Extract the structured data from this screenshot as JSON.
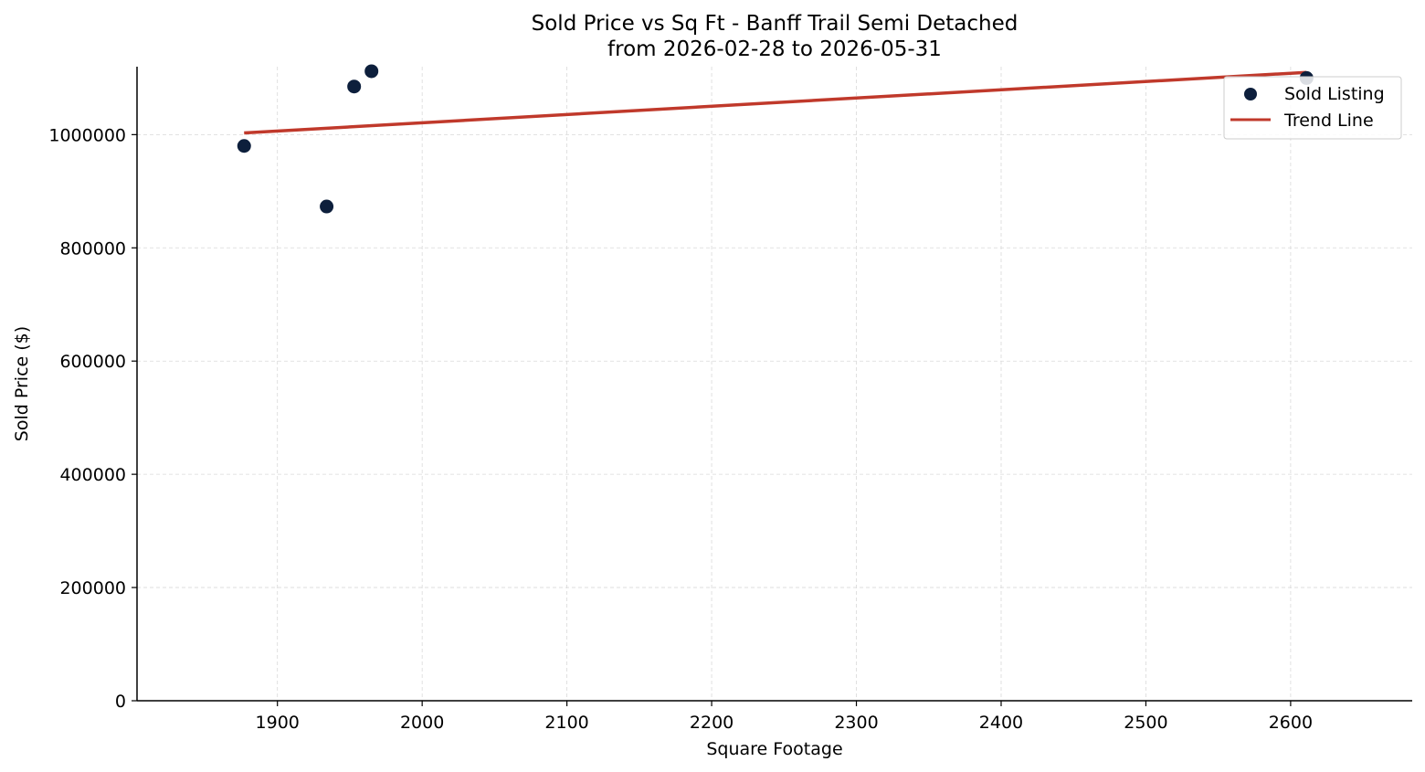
{
  "chart_data": {
    "type": "scatter",
    "title": "Sold Price vs Sq Ft - Banff Trail Semi Detached",
    "subtitle": "from 2026-02-28 to 2026-05-31",
    "xlabel": "Square Footage",
    "ylabel": "Sold Price ($)",
    "xlim": [
      1803,
      2684
    ],
    "ylim": [
      0,
      1120000
    ],
    "xticks": [
      1900,
      2000,
      2100,
      2200,
      2300,
      2400,
      2500,
      2600
    ],
    "yticks": [
      0,
      200000,
      400000,
      600000,
      800000,
      1000000
    ],
    "grid": true,
    "legend_position": "top-right",
    "series": [
      {
        "name": "Sold Listing",
        "kind": "scatter",
        "color": "#0d1f3c",
        "points": [
          {
            "x": 1877,
            "y": 980000
          },
          {
            "x": 1934,
            "y": 873000
          },
          {
            "x": 1953,
            "y": 1085000
          },
          {
            "x": 1965,
            "y": 1112000
          },
          {
            "x": 2611,
            "y": 1100000
          }
        ]
      },
      {
        "name": "Trend Line",
        "kind": "line",
        "color": "#c0392b",
        "points": [
          {
            "x": 1877,
            "y": 1003000
          },
          {
            "x": 2611,
            "y": 1110000
          }
        ]
      }
    ]
  }
}
